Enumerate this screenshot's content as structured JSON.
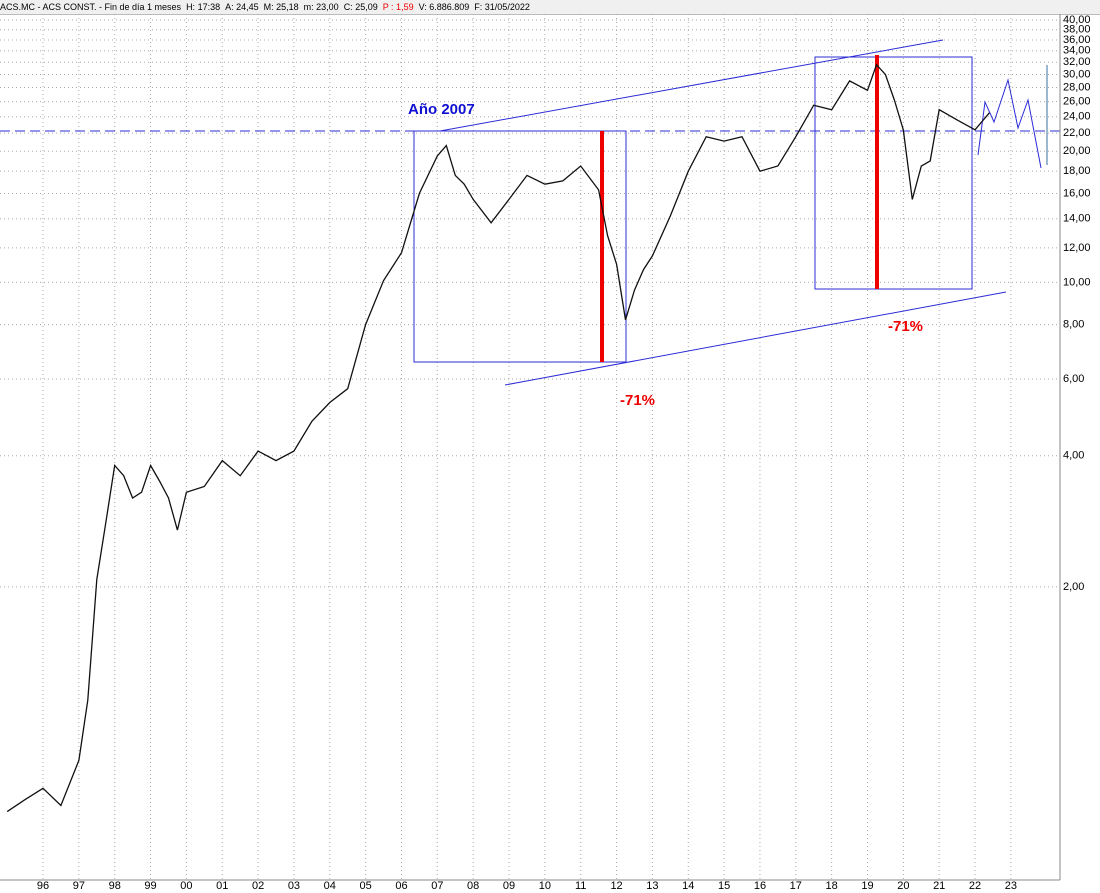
{
  "header": {
    "fields": [
      "ACS.MC - ACS CONST. - Fin de día 1 meses",
      "H: 17:38",
      "A: 24,45",
      "M: 25,18",
      "m: 23,00",
      "C: 25,09",
      "P : 1,59",
      "V: 6.886.809",
      "F: 31/05/2022"
    ]
  },
  "chart_data": {
    "type": "line",
    "log_scale": true,
    "grid": true,
    "color": "#111111",
    "annotations": [
      "Año 2007",
      "-71%",
      "-71%"
    ],
    "xlim": [
      1994.8,
      2024.37
    ],
    "ylim": [
      0.425,
      41.3
    ],
    "xticks": [
      {
        "value": 1996,
        "label": "96"
      },
      {
        "value": 1997,
        "label": "97"
      },
      {
        "value": 1998,
        "label": "98"
      },
      {
        "value": 1999,
        "label": "99"
      },
      {
        "value": 2000,
        "label": "00"
      },
      {
        "value": 2001,
        "label": "01"
      },
      {
        "value": 2002,
        "label": "02"
      },
      {
        "value": 2003,
        "label": "03"
      },
      {
        "value": 2004,
        "label": "04"
      },
      {
        "value": 2005,
        "label": "05"
      },
      {
        "value": 2006,
        "label": "06"
      },
      {
        "value": 2007,
        "label": "07"
      },
      {
        "value": 2008,
        "label": "08"
      },
      {
        "value": 2009,
        "label": "09"
      },
      {
        "value": 2010,
        "label": "10"
      },
      {
        "value": 2011,
        "label": "11"
      },
      {
        "value": 2012,
        "label": "12"
      },
      {
        "value": 2013,
        "label": "13"
      },
      {
        "value": 2014,
        "label": "14"
      },
      {
        "value": 2015,
        "label": "15"
      },
      {
        "value": 2016,
        "label": "16"
      },
      {
        "value": 2017,
        "label": "17"
      },
      {
        "value": 2018,
        "label": "18"
      },
      {
        "value": 2019,
        "label": "19"
      },
      {
        "value": 2020,
        "label": "20"
      },
      {
        "value": 2021,
        "label": "21"
      },
      {
        "value": 2022,
        "label": "22"
      },
      {
        "value": 2023,
        "label": "23"
      }
    ],
    "yticks": [
      {
        "value": 2,
        "label": "2,00"
      },
      {
        "value": 4,
        "label": "4,00"
      },
      {
        "value": 6,
        "label": "6,00"
      },
      {
        "value": 8,
        "label": "8,00"
      },
      {
        "value": 10,
        "label": "10,00"
      },
      {
        "value": 12,
        "label": "12,00"
      },
      {
        "value": 14,
        "label": "14,00"
      },
      {
        "value": 16,
        "label": "16,00"
      },
      {
        "value": 18,
        "label": "18,00"
      },
      {
        "value": 20,
        "label": "20,00"
      },
      {
        "value": 22,
        "label": "22,00"
      },
      {
        "value": 24,
        "label": "24,00"
      },
      {
        "value": 26,
        "label": "26,00"
      },
      {
        "value": 28,
        "label": "28,00"
      },
      {
        "value": 30,
        "label": "30,00"
      },
      {
        "value": 32,
        "label": "32,00"
      },
      {
        "value": 34,
        "label": "34,00"
      },
      {
        "value": 36,
        "label": "36,00"
      },
      {
        "value": 38,
        "label": "38,00"
      },
      {
        "value": 40,
        "label": "40,00"
      }
    ],
    "x": [
      1995.0,
      1995.5,
      1996.0,
      1996.5,
      1997.0,
      1997.25,
      1997.5,
      1997.75,
      1998.0,
      1998.25,
      1998.5,
      1998.75,
      1999.0,
      1999.25,
      1999.5,
      1999.75,
      2000.0,
      2000.5,
      2001.0,
      2001.5,
      2002.0,
      2002.5,
      2003.0,
      2003.5,
      2004.0,
      2004.5,
      2005.0,
      2005.5,
      2006.0,
      2006.5,
      2007.0,
      2007.25,
      2007.5,
      2007.75,
      2008.0,
      2008.5,
      2009.0,
      2009.5,
      2010.0,
      2010.5,
      2011.0,
      2011.5,
      2011.75,
      2012.0,
      2012.25,
      2012.5,
      2012.75,
      2013.0,
      2013.5,
      2014.0,
      2014.5,
      2015.0,
      2015.5,
      2016.0,
      2016.5,
      2017.0,
      2017.5,
      2018.0,
      2018.5,
      2019.0,
      2019.25,
      2019.5,
      2019.75,
      2020.0,
      2020.25,
      2020.5,
      2020.75,
      2021.0,
      2021.5,
      2022.0,
      2022.4
    ],
    "values": [
      0.61,
      0.65,
      0.69,
      0.63,
      0.8,
      1.1,
      2.08,
      2.8,
      3.8,
      3.6,
      3.2,
      3.3,
      3.8,
      3.5,
      3.2,
      2.7,
      3.3,
      3.4,
      3.9,
      3.6,
      4.1,
      3.9,
      4.1,
      4.8,
      5.3,
      5.7,
      8.0,
      10.1,
      11.7,
      16.0,
      19.5,
      20.6,
      17.6,
      16.8,
      15.5,
      13.7,
      15.5,
      17.6,
      16.8,
      17.1,
      18.5,
      16.3,
      12.8,
      11.0,
      8.2,
      9.6,
      10.7,
      11.5,
      14.2,
      18.0,
      21.6,
      21.1,
      21.6,
      18.0,
      18.5,
      21.6,
      25.5,
      24.9,
      29.0,
      27.6,
      31.6,
      30.0,
      26.2,
      22.4,
      15.5,
      18.5,
      19.0,
      24.9,
      23.6,
      22.4,
      24.5
    ]
  }
}
